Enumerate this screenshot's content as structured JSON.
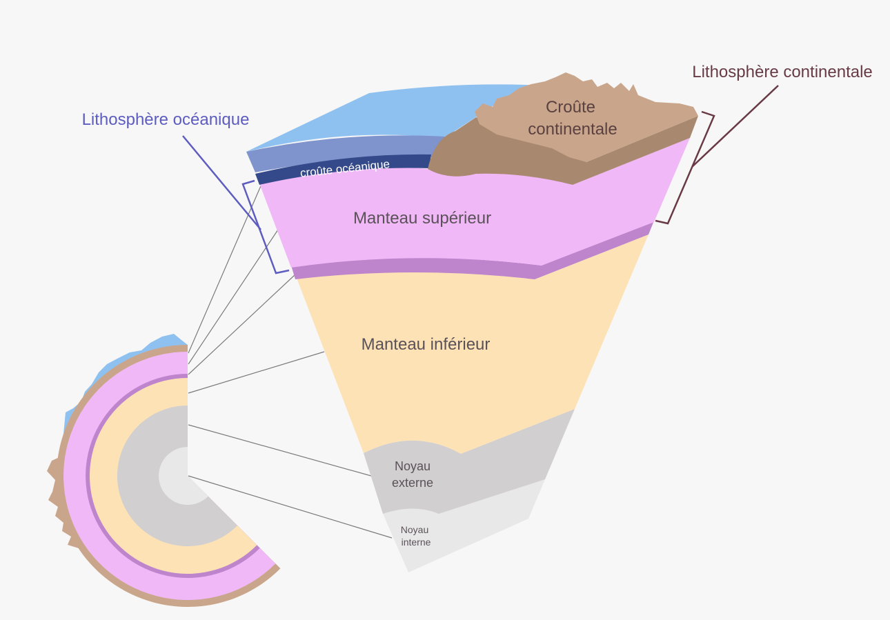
{
  "colors": {
    "background": "#f7f7f7",
    "ocean": "#8fc1f0",
    "oceanic_lithosphere": "#7f93cc",
    "oceanic_crust": "#34498a",
    "continental_crust_top": "#c9a68b",
    "continental_crust_side": "#a8896f",
    "upper_mantle": "#f1b8f7",
    "asthenosphere_band": "#be84cc",
    "lower_mantle": "#fde2b5",
    "outer_core": "#d1cfcf",
    "inner_core": "#e9e8e8",
    "oceanic_label": "#5d5cc0",
    "continental_label": "#683a45"
  },
  "labels": {
    "oceanic_lithosphere": "Lithosphère océanique",
    "continental_lithosphere": "Lithosphère continentale",
    "oceanic_crust": "croûte océanique",
    "continental_crust_line1": "Croûte",
    "continental_crust_line2": "continentale",
    "upper_mantle": "Manteau supérieur",
    "lower_mantle": "Manteau inférieur",
    "outer_core_line1": "Noyau",
    "outer_core_line2": "externe",
    "inner_core_line1": "Noyau",
    "inner_core_line2": "interne"
  }
}
